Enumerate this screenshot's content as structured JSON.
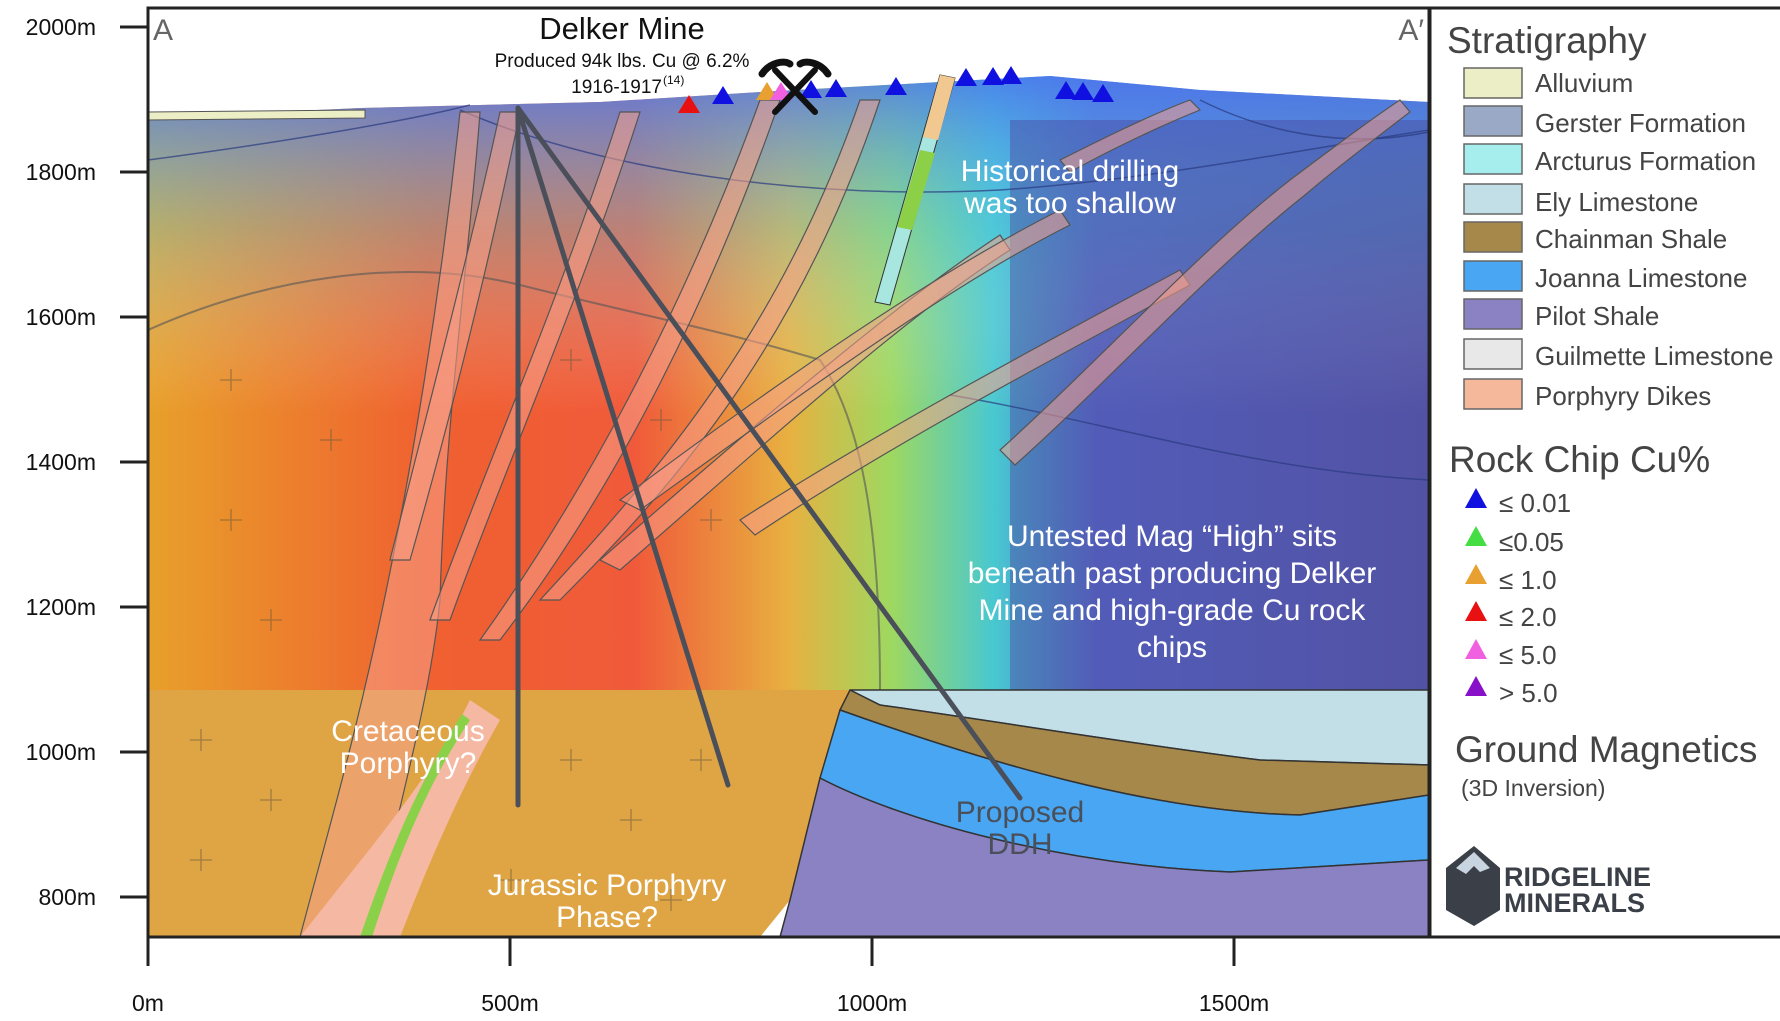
{
  "section": {
    "start_label": "A",
    "end_label": "A′",
    "mine_title": "Delker Mine",
    "mine_production": "Produced 94k lbs. Cu @ 6.2%",
    "mine_years": "1916-1917",
    "mine_years_ref": "(14)"
  },
  "axes": {
    "y_ticks": [
      "2000m",
      "1800m",
      "1600m",
      "1400m",
      "1200m",
      "1000m",
      "800m"
    ],
    "x_ticks": [
      "0m",
      "500m",
      "1000m",
      "1500m"
    ]
  },
  "annotations": {
    "historical_line1": "Historical drilling",
    "historical_line2": "was too shallow",
    "untested_line1": "Untested Mag “High” sits",
    "untested_line2": "beneath past producing Delker",
    "untested_line3": "Mine and high-grade Cu rock",
    "untested_line4": "chips",
    "cretaceous_line1": "Cretaceous",
    "cretaceous_line2": "Porphyry?",
    "jurassic_line1": "Jurassic Porphyry",
    "jurassic_line2": "Phase?",
    "proposed_line1": "Proposed",
    "proposed_line2": "DDH"
  },
  "legend": {
    "stratigraphy_title": "Stratigraphy",
    "stratigraphy": [
      {
        "label": "Alluvium",
        "color": "#ecefc6"
      },
      {
        "label": "Gerster Formation",
        "color": "#9aaac6"
      },
      {
        "label": "Arcturus Formation",
        "color": "#a6eded"
      },
      {
        "label": "Ely Limestone",
        "color": "#c2dfe8"
      },
      {
        "label": "Chainman Shale",
        "color": "#a6884a"
      },
      {
        "label": "Joanna Limestone",
        "color": "#48a6f2"
      },
      {
        "label": "Pilot Shale",
        "color": "#8a82c2"
      },
      {
        "label": "Guilmette Limestone",
        "color": "#e8e8e8"
      },
      {
        "label": "Porphyry Dikes",
        "color": "#f6b89a"
      }
    ],
    "rockchip_title": "Rock Chip Cu%",
    "rockchip": [
      {
        "label": "≤ 0.01",
        "color": "#1010e0"
      },
      {
        "label": "≤0.05",
        "color": "#44dd44"
      },
      {
        "label": "≤ 1.0",
        "color": "#e8a030"
      },
      {
        "label": "≤ 2.0",
        "color": "#e81010"
      },
      {
        "label": "≤ 5.0",
        "color": "#f060e0"
      },
      {
        "label": "> 5.0",
        "color": "#8810c8"
      }
    ],
    "magnetics_title": "Ground Magnetics",
    "magnetics_sub": "(3D Inversion)"
  },
  "logo": {
    "line1": "RIDGELINE",
    "line2": "MINERALS"
  },
  "colors": {
    "drillhole": "#4a4f5a",
    "frame": "#222222"
  }
}
